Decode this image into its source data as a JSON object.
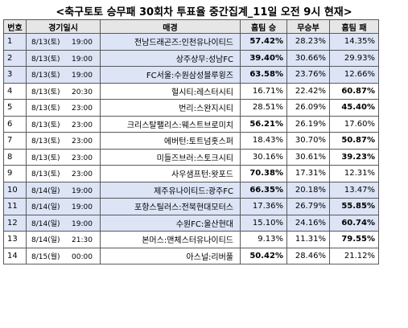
{
  "title": "<축구토토 승무패 30회차 투표율 중간집계_11일 오전 9시 현재>",
  "header": {
    "no": "번호",
    "datetime": "경기일시",
    "match": "매경",
    "home_win": "홈팀 승",
    "draw": "무승부",
    "home_loss": "홈팀 패"
  },
  "highlight_color": "#dce4f6",
  "rows": [
    {
      "no": "1",
      "date": "8/13(토)",
      "time": "19:00",
      "match": "전남드래곤즈:인천유나이티드",
      "win": "57.42%",
      "draw": "28.23%",
      "loss": "14.35%",
      "bold": "win",
      "highlight": true
    },
    {
      "no": "2",
      "date": "8/13(토)",
      "time": "19:00",
      "match": "상주상무:성남FC",
      "win": "39.40%",
      "draw": "30.66%",
      "loss": "29.93%",
      "bold": "win",
      "highlight": true
    },
    {
      "no": "3",
      "date": "8/13(토)",
      "time": "19:00",
      "match": "FC서울:수원삼성블루윙즈",
      "win": "63.58%",
      "draw": "23.76%",
      "loss": "12.66%",
      "bold": "win",
      "highlight": true
    },
    {
      "no": "4",
      "date": "8/13(토)",
      "time": "20:30",
      "match": "헐시티:레스터시티",
      "win": "16.71%",
      "draw": "22.42%",
      "loss": "60.87%",
      "bold": "loss",
      "highlight": false
    },
    {
      "no": "5",
      "date": "8/13(토)",
      "time": "23:00",
      "match": "번리:스완지시티",
      "win": "28.51%",
      "draw": "26.09%",
      "loss": "45.40%",
      "bold": "loss",
      "highlight": false
    },
    {
      "no": "6",
      "date": "8/13(토)",
      "time": "23:00",
      "match": "크리스탈팰리스:웨스트브로미치",
      "win": "56.21%",
      "draw": "26.19%",
      "loss": "17.60%",
      "bold": "win",
      "highlight": false
    },
    {
      "no": "7",
      "date": "8/13(토)",
      "time": "23:00",
      "match": "에버턴:토트넘홋스퍼",
      "win": "18.43%",
      "draw": "30.70%",
      "loss": "50.87%",
      "bold": "loss",
      "highlight": false
    },
    {
      "no": "8",
      "date": "8/13(토)",
      "time": "23:00",
      "match": "미들즈브러:스토크시티",
      "win": "30.16%",
      "draw": "30.61%",
      "loss": "39.23%",
      "bold": "loss",
      "highlight": false
    },
    {
      "no": "9",
      "date": "8/13(토)",
      "time": "23:00",
      "match": "사우샘프턴:왓포드",
      "win": "70.38%",
      "draw": "17.31%",
      "loss": "12.31%",
      "bold": "win",
      "highlight": false
    },
    {
      "no": "10",
      "date": "8/14(일)",
      "time": "19:00",
      "match": "제주유나이티드:광주FC",
      "win": "66.35%",
      "draw": "20.18%",
      "loss": "13.47%",
      "bold": "win",
      "highlight": true
    },
    {
      "no": "11",
      "date": "8/14(일)",
      "time": "19:00",
      "match": "포항스틸러스:전북현대모터스",
      "win": "17.36%",
      "draw": "26.79%",
      "loss": "55.85%",
      "bold": "loss",
      "highlight": true
    },
    {
      "no": "12",
      "date": "8/14(일)",
      "time": "19:00",
      "match": "수원FC:울산현대",
      "win": "15.10%",
      "draw": "24.16%",
      "loss": "60.74%",
      "bold": "loss",
      "highlight": true
    },
    {
      "no": "13",
      "date": "8/14(일)",
      "time": "21:30",
      "match": "본머스:맨체스터유나이티드",
      "win": "9.13%",
      "draw": "11.31%",
      "loss": "79.55%",
      "bold": "loss",
      "highlight": false
    },
    {
      "no": "14",
      "date": "8/15(월)",
      "time": "00:00",
      "match": "아스널:리버풀",
      "win": "50.42%",
      "draw": "28.46%",
      "loss": "21.12%",
      "bold": "win",
      "highlight": false
    }
  ]
}
